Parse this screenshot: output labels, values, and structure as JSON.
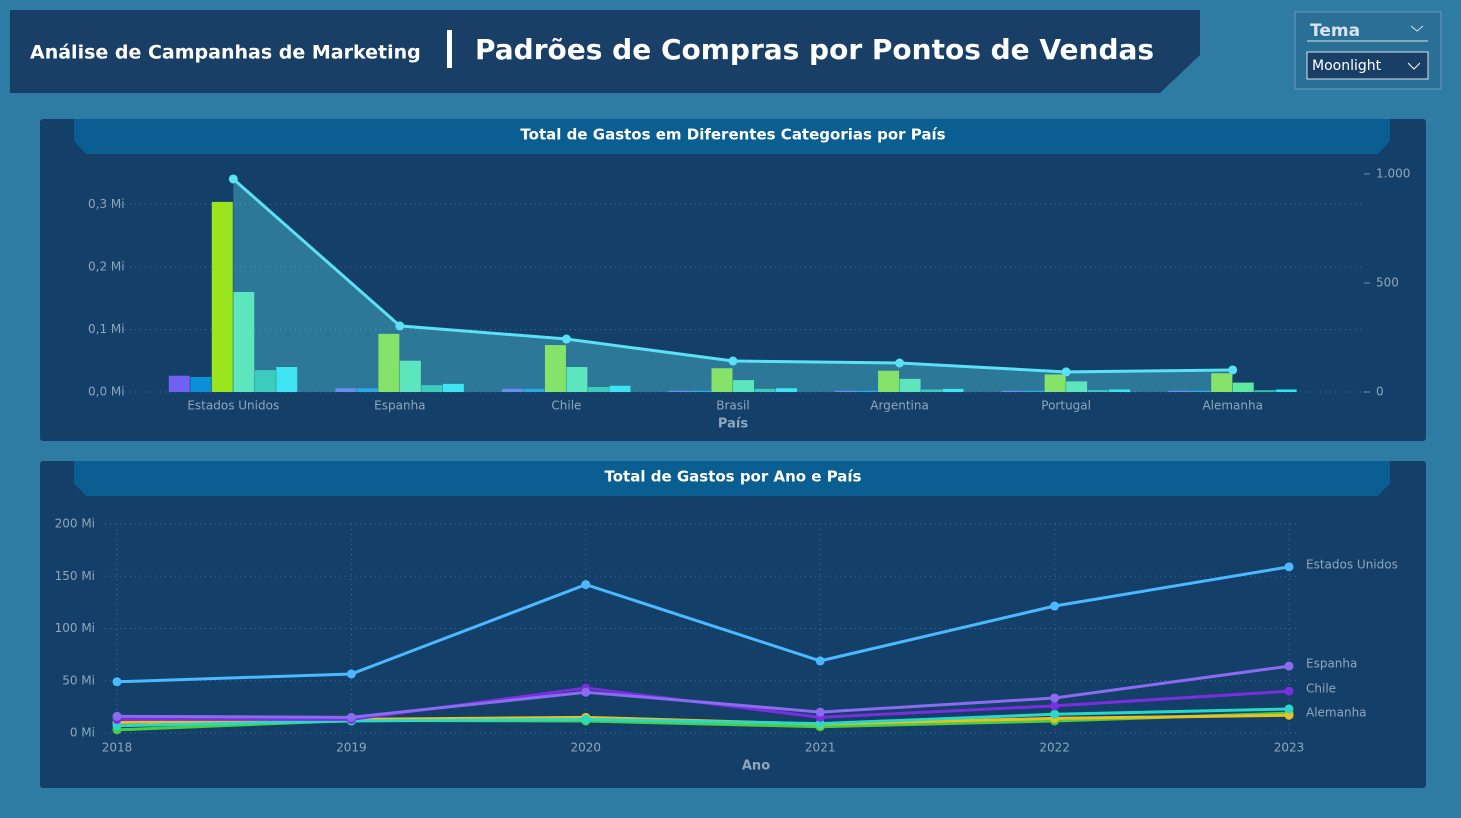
{
  "header": {
    "subtitle": "Análise de Campanhas de Marketing",
    "title": "Padrões de Compras por Pontos de Vendas"
  },
  "theme": {
    "label": "Tema",
    "value": "Moonlight"
  },
  "chart_data": [
    {
      "type": "bar",
      "title": "Total de Gastos em Diferentes Categorias por País",
      "xlabel": "País",
      "categories": [
        "Estados Unidos",
        "Espanha",
        "Chile",
        "Brasil",
        "Argentina",
        "Portugal",
        "Alemanha"
      ],
      "series": [
        {
          "color": "#6f62f0",
          "values": [
            0.026,
            0.006,
            0.005,
            0.002,
            0.002,
            0.002,
            0.002
          ]
        },
        {
          "color": "#0b8fd8",
          "values": [
            0.024,
            0.006,
            0.005,
            0.002,
            0.002,
            0.002,
            0.002
          ]
        },
        {
          "color": "#9be51f",
          "values": [
            0.304,
            0.093,
            0.075,
            0.038,
            0.034,
            0.028,
            0.03
          ]
        },
        {
          "color": "#5fe8a0",
          "values": [
            0.16,
            0.05,
            0.04,
            0.019,
            0.021,
            0.017,
            0.015
          ]
        },
        {
          "color": "#29c3a0",
          "values": [
            0.035,
            0.011,
            0.008,
            0.005,
            0.004,
            0.003,
            0.003
          ]
        },
        {
          "color": "#2ee6f0",
          "values": [
            0.04,
            0.013,
            0.01,
            0.006,
            0.005,
            0.004,
            0.004
          ]
        },
        {
          "type": "line",
          "axis": "y2",
          "color": "#5ce0f5",
          "values": [
            977,
            303,
            243,
            142,
            133,
            92,
            101
          ]
        }
      ],
      "ylim": [
        0,
        0.355
      ],
      "yticks": [
        {
          "value": 0,
          "label": "0,0 Mi"
        },
        {
          "value": 0.1,
          "label": "0,1 Mi"
        },
        {
          "value": 0.2,
          "label": "0,2 Mi"
        },
        {
          "value": 0.3,
          "label": "0,3 Mi"
        }
      ],
      "y2lim": [
        0,
        1018
      ],
      "y2ticks": [
        0,
        500,
        {
          "value": 1000,
          "label": "1.000"
        }
      ],
      "grid": true
    },
    {
      "type": "line",
      "title": "Total de Gastos por Ano e País",
      "xlabel": "Ano",
      "x": [
        2018,
        2019,
        2020,
        2021,
        2022,
        2023
      ],
      "xlim": [
        2018,
        2023
      ],
      "xticks": [
        2018,
        2019,
        2020,
        2021,
        2022,
        2023
      ],
      "series": [
        {
          "name": "Estados Unidos",
          "color": "#4cb8ff",
          "values": [
            49,
            56.5,
            142,
            69,
            121.5,
            159
          ]
        },
        {
          "name": "Espanha",
          "color": "#8a6cf0",
          "values": [
            16,
            15,
            39,
            20,
            33.5,
            64
          ]
        },
        {
          "name": "Chile",
          "color": "#7a2ee0",
          "values": [
            13,
            13,
            43,
            15,
            26,
            40
          ]
        },
        {
          "name": "Alemanha",
          "color": "#2ad8c8",
          "values": [
            7,
            11.5,
            13,
            9,
            18,
            23
          ]
        },
        {
          "color": "#e8c020",
          "values": [
            10,
            13,
            15,
            8.5,
            14,
            17
          ]
        },
        {
          "color": "#4ccc40",
          "values": [
            3,
            12,
            11.5,
            6,
            11.5,
            19
          ]
        }
      ],
      "ylim": [
        0,
        200
      ],
      "yticks": [
        {
          "value": 0,
          "label": "0 Mi"
        },
        {
          "value": 50,
          "label": "50 Mi"
        },
        {
          "value": 100,
          "label": "100 Mi"
        },
        {
          "value": 150,
          "label": "150 Mi"
        },
        {
          "value": 200,
          "label": "200 Mi"
        }
      ],
      "grid": true
    }
  ]
}
